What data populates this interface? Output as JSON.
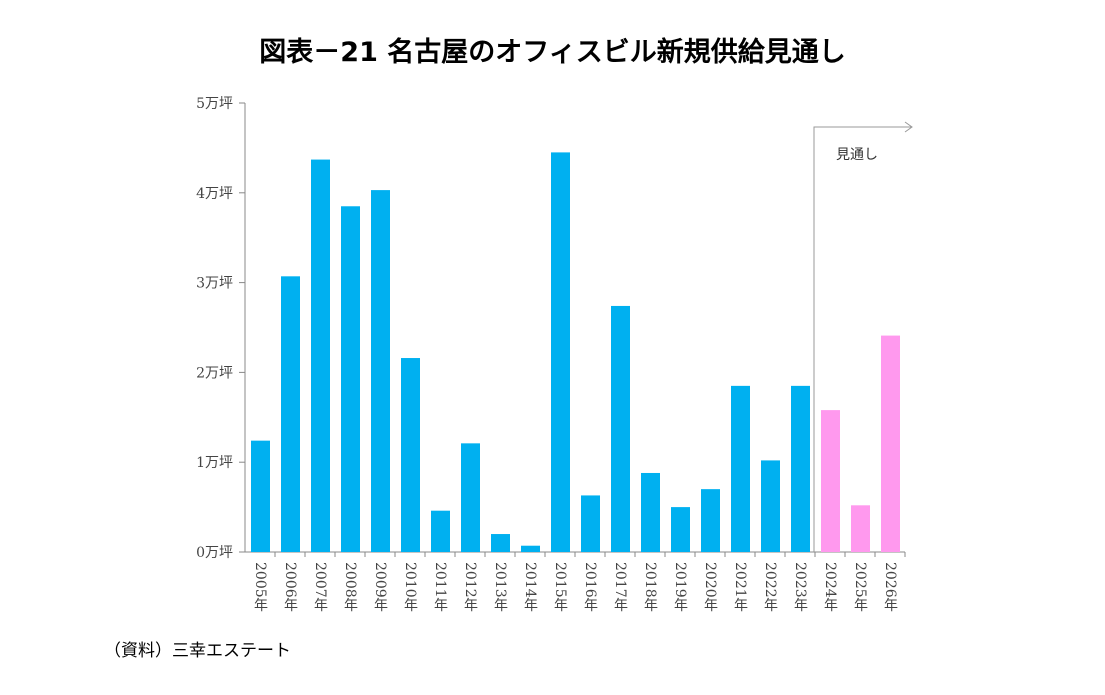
{
  "chart_data": {
    "type": "bar",
    "title": "図表－21 名古屋のオフィスビル新規供給見通し",
    "source": "（資料）三幸エステート",
    "unit": "万坪",
    "ylim": [
      0,
      5
    ],
    "yticks": [
      "0万坪",
      "1万坪",
      "2万坪",
      "3万坪",
      "4万坪",
      "5万坪"
    ],
    "categories": [
      "2005年",
      "2006年",
      "2007年",
      "2008年",
      "2009年",
      "2010年",
      "2011年",
      "2012年",
      "2013年",
      "2014年",
      "2015年",
      "2016年",
      "2017年",
      "2018年",
      "2019年",
      "2020年",
      "2021年",
      "2022年",
      "2023年",
      "2024年",
      "2025年",
      "2026年"
    ],
    "values": [
      1.24,
      3.07,
      4.37,
      3.85,
      4.03,
      2.16,
      0.46,
      1.21,
      0.2,
      0.07,
      4.45,
      0.63,
      2.74,
      0.88,
      0.5,
      0.7,
      1.85,
      1.02,
      1.85,
      1.58,
      0.52,
      2.41
    ],
    "forecast_start": "2024年",
    "forecast_label": "見通し",
    "colors": {
      "actual": "#00b0f0",
      "forecast": "#ff99ee"
    },
    "grid": false
  }
}
